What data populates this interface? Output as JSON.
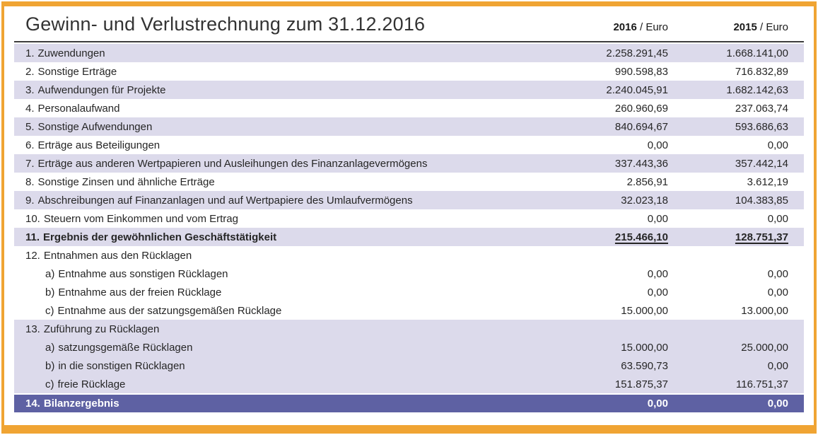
{
  "title": "Gewinn- und Verlustrechnung zum 31.12.2016",
  "columns": [
    {
      "year": "2016",
      "unit": " / Euro"
    },
    {
      "year": "2015",
      "unit": " / Euro"
    }
  ],
  "colors": {
    "frame": "#F0A433",
    "shaded_row": "#DCDAEB",
    "final_row_bg": "#5E61A3",
    "title_text": "#333333",
    "text": "#262626"
  },
  "rows": [
    {
      "num": "1.",
      "label": "Zuwendungen",
      "v2016": "2.258.291,45",
      "v2015": "1.668.141,00",
      "style": "shaded"
    },
    {
      "num": "2.",
      "label": "Sonstige Erträge",
      "v2016": "990.598,83",
      "v2015": "716.832,89",
      "style": "plain"
    },
    {
      "num": "3.",
      "label": "Aufwendungen für Projekte",
      "v2016": "2.240.045,91",
      "v2015": "1.682.142,63",
      "style": "shaded"
    },
    {
      "num": "4.",
      "label": "Personalaufwand",
      "v2016": "260.960,69",
      "v2015": "237.063,74",
      "style": "plain"
    },
    {
      "num": "5.",
      "label": "Sonstige Aufwendungen",
      "v2016": "840.694,67",
      "v2015": "593.686,63",
      "style": "shaded"
    },
    {
      "num": "6.",
      "label": "Erträge aus Beteiligungen",
      "v2016": "0,00",
      "v2015": "0,00",
      "style": "plain"
    },
    {
      "num": "7.",
      "label": "Erträge aus anderen Wertpapieren und Ausleihungen des Finanzanlagevermögens",
      "v2016": "337.443,36",
      "v2015": "357.442,14",
      "style": "shaded"
    },
    {
      "num": "8.",
      "label": "Sonstige Zinsen und ähnliche Erträge",
      "v2016": "2.856,91",
      "v2015": "3.612,19",
      "style": "plain"
    },
    {
      "num": "9.",
      "label": "Abschreibungen auf Finanzanlagen und auf Wertpapiere des Umlaufvermögens",
      "v2016": "32.023,18",
      "v2015": "104.383,85",
      "style": "shaded"
    },
    {
      "num": "10.",
      "label": "Steuern vom Einkommen und vom Ertrag",
      "v2016": "0,00",
      "v2015": "0,00",
      "style": "plain"
    },
    {
      "num": "11.",
      "label": "Ergebnis der gewöhnlichen Geschäftstätigkeit",
      "v2016": "215.466,10",
      "v2015": "128.751,37",
      "style": "total"
    },
    {
      "num": "12.",
      "label": "Entnahmen aus den Rücklagen",
      "v2016": "",
      "v2015": "",
      "style": "plain"
    },
    {
      "num": "a)",
      "label": "Entnahme aus sonstigen Rücklagen",
      "v2016": "0,00",
      "v2015": "0,00",
      "style": "plain",
      "indent": true
    },
    {
      "num": "b)",
      "label": "Entnahme aus der freien Rücklage",
      "v2016": "0,00",
      "v2015": "0,00",
      "style": "plain",
      "indent": true
    },
    {
      "num": "c)",
      "label": "Entnahme aus der satzungsgemäßen Rücklage",
      "v2016": "15.000,00",
      "v2015": "13.000,00",
      "style": "plain",
      "indent": true
    },
    {
      "num": "13.",
      "label": "Zuführung zu Rücklagen",
      "v2016": "",
      "v2015": "",
      "style": "shaded"
    },
    {
      "num": "a)",
      "label": "satzungsgemäße Rücklagen",
      "v2016": "15.000,00",
      "v2015": "25.000,00",
      "style": "shaded",
      "indent": true
    },
    {
      "num": "b)",
      "label": "in die sonstigen Rücklagen",
      "v2016": "63.590,73",
      "v2015": "0,00",
      "style": "shaded",
      "indent": true
    },
    {
      "num": "c)",
      "label": "freie Rücklage",
      "v2016": "151.875,37",
      "v2015": "116.751,37",
      "style": "shaded",
      "indent": true
    },
    {
      "num": "14.",
      "label": "Bilanzergebnis",
      "v2016": "0,00",
      "v2015": "0,00",
      "style": "final"
    }
  ]
}
